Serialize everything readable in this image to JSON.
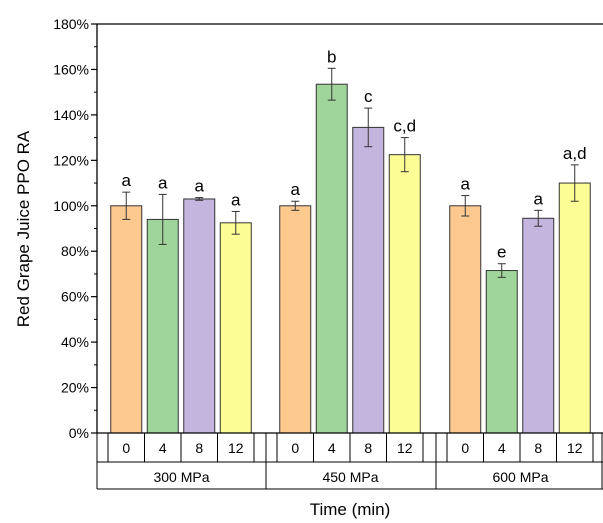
{
  "chart_data": {
    "type": "bar",
    "ylabel": "Red Grape Juice PPO RA",
    "xlabel": "Time (min)",
    "ylim": [
      0,
      180
    ],
    "ytick_step": 20,
    "ytick_suffix": "%",
    "grid": false,
    "colors": {
      "0": "#fdc98f",
      "4": "#9fd59b",
      "8": "#c4b5df",
      "12": "#fdfd96"
    },
    "groups": [
      {
        "label": "300 MPa",
        "bars": [
          {
            "time": "0",
            "value": 100,
            "error": 6,
            "sig": "a"
          },
          {
            "time": "4",
            "value": 94,
            "error": 11,
            "sig": "a"
          },
          {
            "time": "8",
            "value": 103,
            "error": 0.6,
            "sig": "a"
          },
          {
            "time": "12",
            "value": 92.5,
            "error": 5,
            "sig": "a"
          }
        ]
      },
      {
        "label": "450 MPa",
        "bars": [
          {
            "time": "0",
            "value": 100,
            "error": 2,
            "sig": "a"
          },
          {
            "time": "4",
            "value": 153.5,
            "error": 7,
            "sig": "b"
          },
          {
            "time": "8",
            "value": 134.5,
            "error": 8.5,
            "sig": "c"
          },
          {
            "time": "12",
            "value": 122.5,
            "error": 7.5,
            "sig": "c,d"
          }
        ]
      },
      {
        "label": "600 MPa",
        "bars": [
          {
            "time": "0",
            "value": 100,
            "error": 4.5,
            "sig": "a"
          },
          {
            "time": "4",
            "value": 71.5,
            "error": 3,
            "sig": "e"
          },
          {
            "time": "8",
            "value": 94.5,
            "error": 3.5,
            "sig": "a"
          },
          {
            "time": "12",
            "value": 110,
            "error": 8,
            "sig": "a,d"
          }
        ]
      }
    ]
  }
}
